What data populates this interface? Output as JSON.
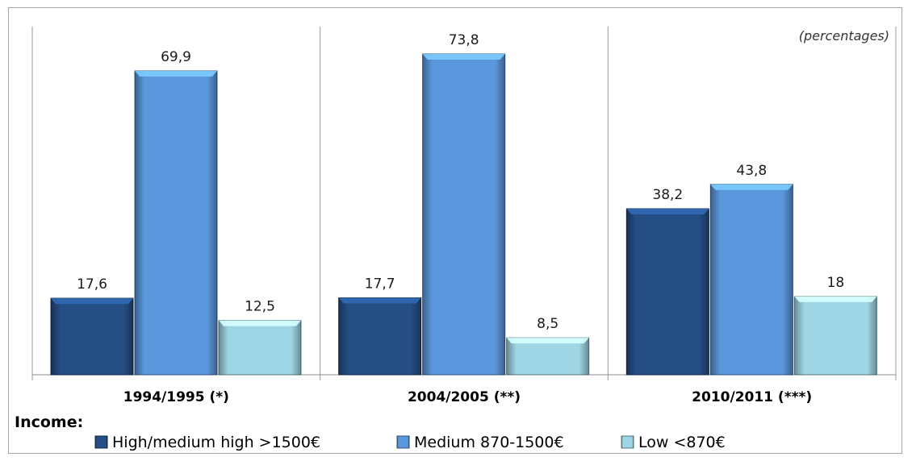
{
  "chart_data": {
    "type": "bar",
    "note": "(percentages)",
    "legend_title": "Income:",
    "legend_position": "bottom",
    "categories": [
      "1994/1995 (*)",
      "2004/2005 (**)",
      "2010/2011 (***)"
    ],
    "series": [
      {
        "name": "High/medium high >1500€",
        "values": [
          17.6,
          17.7,
          38.2
        ],
        "labels": [
          "17,6",
          "17,7",
          "38,2"
        ],
        "color": "#254e85"
      },
      {
        "name": "Medium 870-1500€",
        "values": [
          69.9,
          73.8,
          43.8
        ],
        "labels": [
          "69,9",
          "73,8",
          "43,8"
        ],
        "color": "#5b97dc"
      },
      {
        "name": "Low <870€",
        "values": [
          12.5,
          8.5,
          18
        ],
        "labels": [
          "12,5",
          "8,5",
          "18"
        ],
        "color": "#9fd6e5"
      }
    ],
    "ylim": [
      0,
      80
    ],
    "grid": false
  }
}
